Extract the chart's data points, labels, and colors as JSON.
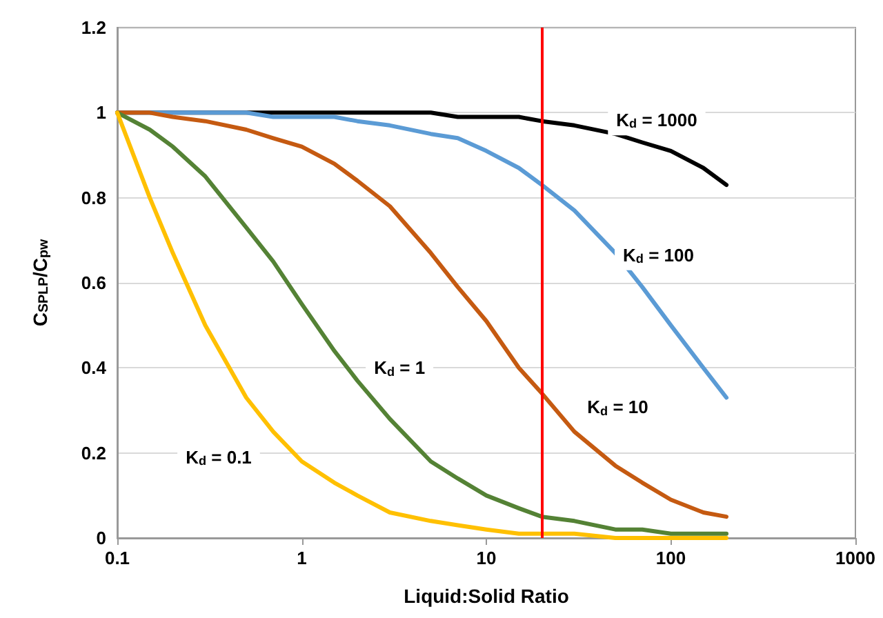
{
  "chart_data": {
    "type": "line",
    "xlabel": "Liquid:Solid Ratio",
    "ylabel": "C$_{SPLP}$/C$_{pw}$",
    "x": [
      0.1,
      0.15,
      0.2,
      0.3,
      0.5,
      0.7,
      1,
      1.5,
      2,
      3,
      5,
      7,
      10,
      15,
      20,
      30,
      50,
      70,
      100,
      150,
      200
    ],
    "series": [
      {
        "name": "K$_{d}$ = 1000",
        "color": "#000000",
        "values": [
          1,
          1,
          1,
          1,
          1,
          1,
          1,
          1,
          1,
          1,
          1,
          0.99,
          0.99,
          0.99,
          0.98,
          0.97,
          0.95,
          0.93,
          0.91,
          0.87,
          0.83
        ]
      },
      {
        "name": "K$_{d}$ = 100",
        "color": "#5b9bd5",
        "values": [
          1,
          1,
          1,
          1,
          1,
          0.99,
          0.99,
          0.99,
          0.98,
          0.97,
          0.95,
          0.94,
          0.91,
          0.87,
          0.83,
          0.77,
          0.67,
          0.59,
          0.5,
          0.4,
          0.33
        ]
      },
      {
        "name": "K$_{d}$ = 10",
        "color": "#c55a11",
        "values": [
          1,
          1,
          0.99,
          0.98,
          0.96,
          0.94,
          0.92,
          0.88,
          0.84,
          0.78,
          0.67,
          0.59,
          0.51,
          0.4,
          0.34,
          0.25,
          0.17,
          0.13,
          0.09,
          0.06,
          0.05
        ]
      },
      {
        "name": "K$_{d}$ = 1",
        "color": "#548235",
        "values": [
          1,
          0.96,
          0.92,
          0.85,
          0.73,
          0.65,
          0.55,
          0.44,
          0.37,
          0.28,
          0.18,
          0.14,
          0.1,
          0.07,
          0.05,
          0.04,
          0.02,
          0.02,
          0.01,
          0.01,
          0.01
        ]
      },
      {
        "name": "K$_{d}$ = 0.1",
        "color": "#ffc000",
        "values": [
          1,
          0.8,
          0.67,
          0.5,
          0.33,
          0.25,
          0.18,
          0.13,
          0.1,
          0.06,
          0.04,
          0.03,
          0.02,
          0.01,
          0.01,
          0.01,
          0,
          0,
          0,
          0,
          0
        ]
      }
    ],
    "ref_lines": [
      {
        "axis": "x",
        "value": 20,
        "color": "#ff0000"
      }
    ],
    "log": "x",
    "xlim": [
      0.1,
      1000
    ],
    "xticks": [
      0.1,
      1,
      10,
      100,
      1000
    ],
    "ylim": [
      0,
      1.2
    ],
    "yticks": [
      0,
      0.2,
      0.4,
      0.6,
      0.8,
      1,
      1.2
    ],
    "grid": "y",
    "legend": false,
    "marker": "none",
    "line_style": "solid"
  }
}
